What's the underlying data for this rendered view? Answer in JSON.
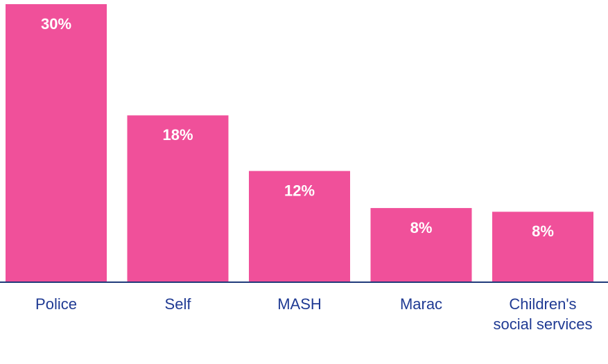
{
  "chart_data": {
    "type": "bar",
    "categories": [
      "Police",
      "Self",
      "MASH",
      "Marac",
      "Children's social services"
    ],
    "values": [
      30,
      18,
      12,
      8,
      7.6
    ],
    "value_labels": [
      "30%",
      "18%",
      "12%",
      "8%",
      "8%"
    ],
    "color": "#f0509a"
  }
}
